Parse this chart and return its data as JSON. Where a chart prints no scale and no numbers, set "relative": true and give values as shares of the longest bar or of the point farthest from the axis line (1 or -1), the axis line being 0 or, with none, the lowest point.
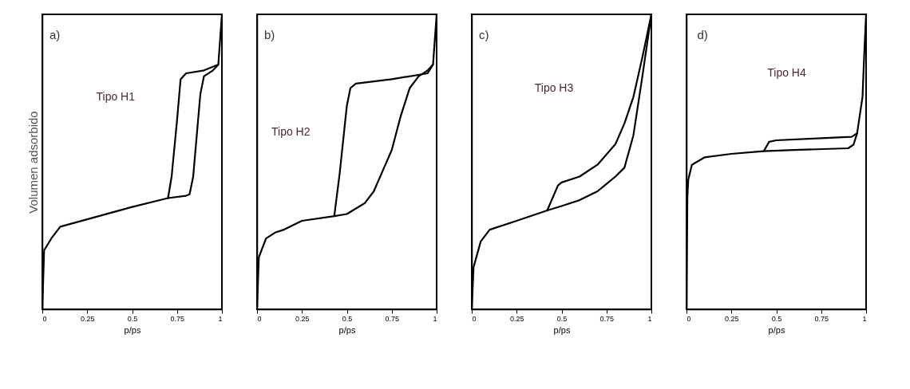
{
  "chart_data": [
    {
      "type": "line",
      "relative": true,
      "ylabel": "Volumen adsorbido",
      "xlabel": "p/ps",
      "xlim": [
        0,
        1
      ],
      "xticks": [
        0,
        0.25,
        0.5,
        0.75,
        1
      ],
      "annotations": [
        "a)",
        "Tipo H1"
      ],
      "series": [
        {
          "color": "#000000",
          "x": [
            0,
            0.01,
            0.05,
            0.1,
            0.25,
            0.5,
            0.7,
            0.8,
            0.82,
            0.84,
            0.86,
            0.88,
            0.9,
            0.95,
            0.98,
            1.0
          ],
          "values": [
            0,
            0.2,
            0.24,
            0.28,
            0.305,
            0.347,
            0.377,
            0.385,
            0.39,
            0.45,
            0.59,
            0.73,
            0.79,
            0.81,
            0.83,
            1.0
          ]
        },
        {
          "color": "#000000",
          "x": [
            0.7,
            0.72,
            0.75,
            0.77,
            0.8,
            0.9,
            0.98
          ],
          "values": [
            0.377,
            0.45,
            0.64,
            0.78,
            0.8,
            0.81,
            0.83
          ]
        }
      ]
    },
    {
      "type": "line",
      "relative": true,
      "xlabel": "p/ps",
      "xlim": [
        0,
        1
      ],
      "xticks": [
        0,
        0.25,
        0.5,
        0.75,
        1
      ],
      "annotations": [
        "b)",
        "Tipo H2"
      ],
      "series": [
        {
          "color": "#000000",
          "x": [
            0,
            0.01,
            0.05,
            0.1,
            0.15,
            0.25,
            0.43,
            0.5,
            0.6,
            0.65,
            0.7,
            0.75,
            0.8,
            0.85,
            0.9,
            0.95,
            0.98,
            1.0
          ],
          "values": [
            0,
            0.176,
            0.24,
            0.26,
            0.27,
            0.3,
            0.316,
            0.323,
            0.36,
            0.4,
            0.47,
            0.54,
            0.655,
            0.75,
            0.79,
            0.81,
            0.83,
            1.0
          ]
        },
        {
          "color": "#000000",
          "x": [
            0.43,
            0.46,
            0.5,
            0.52,
            0.55,
            0.75,
            0.95,
            0.98
          ],
          "values": [
            0.316,
            0.46,
            0.69,
            0.75,
            0.765,
            0.78,
            0.8,
            0.83
          ]
        }
      ]
    },
    {
      "type": "line",
      "relative": true,
      "xlabel": "p/ps",
      "xlim": [
        0,
        1
      ],
      "xticks": [
        0,
        0.25,
        0.5,
        0.75,
        1
      ],
      "annotations": [
        "c)",
        "Tipo H3"
      ],
      "series": [
        {
          "color": "#000000",
          "x": [
            0,
            0.01,
            0.05,
            0.1,
            0.25,
            0.42,
            0.5,
            0.6,
            0.7,
            0.8,
            0.85,
            0.9,
            0.95,
            1.0
          ],
          "values": [
            0,
            0.143,
            0.23,
            0.27,
            0.3,
            0.335,
            0.35,
            0.37,
            0.4,
            0.45,
            0.48,
            0.59,
            0.79,
            1.0
          ]
        },
        {
          "color": "#000000",
          "x": [
            0.42,
            0.48,
            0.5,
            0.6,
            0.7,
            0.8,
            0.85,
            0.9,
            0.95,
            1.0
          ],
          "values": [
            0.335,
            0.42,
            0.43,
            0.45,
            0.49,
            0.56,
            0.63,
            0.72,
            0.855,
            1.0
          ]
        }
      ]
    },
    {
      "type": "line",
      "relative": true,
      "xlabel": "p/ps",
      "xlim": [
        0,
        1
      ],
      "xticks": [
        0,
        0.25,
        0.5,
        0.75,
        1
      ],
      "annotations": [
        "d)",
        "Tipo H4"
      ],
      "series": [
        {
          "color": "#000000",
          "x": [
            0,
            0.005,
            0.01,
            0.03,
            0.1,
            0.25,
            0.43,
            0.6,
            0.9,
            0.93,
            0.95,
            0.98,
            0.99,
            1.0
          ],
          "values": [
            0,
            0.38,
            0.44,
            0.49,
            0.515,
            0.527,
            0.536,
            0.54,
            0.546,
            0.558,
            0.597,
            0.72,
            0.87,
            1.0
          ]
        },
        {
          "color": "#000000",
          "x": [
            0.43,
            0.46,
            0.5,
            0.75,
            0.92,
            0.95
          ],
          "values": [
            0.536,
            0.568,
            0.573,
            0.58,
            0.585,
            0.597
          ]
        }
      ]
    }
  ]
}
